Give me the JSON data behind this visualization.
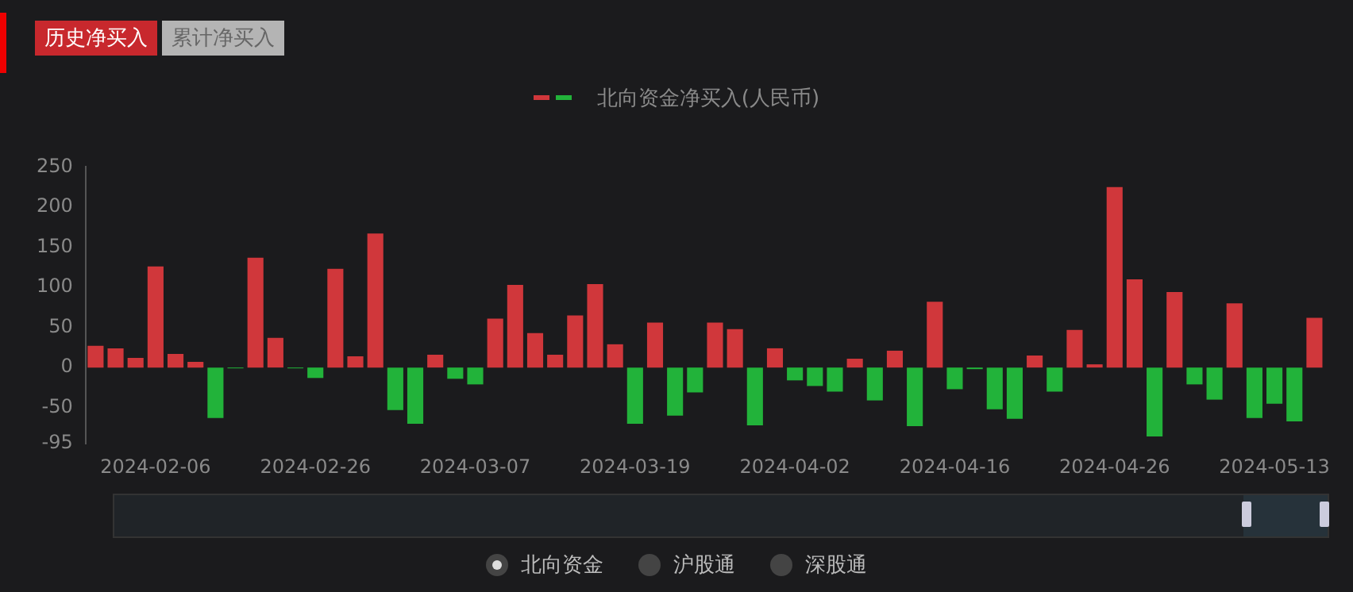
{
  "chart_data": {
    "type": "bar",
    "legend": "top",
    "annotations": [
      "历史净买入",
      "累计净买入",
      "北向资金",
      "沪股通",
      "深股通"
    ],
    "categories": [
      null,
      null,
      null,
      "2024-02-06",
      null,
      null,
      null,
      null,
      null,
      null,
      null,
      "2024-02-26",
      null,
      null,
      null,
      null,
      null,
      null,
      null,
      "2024-03-07",
      null,
      null,
      null,
      null,
      null,
      null,
      null,
      "2024-03-19",
      null,
      null,
      null,
      null,
      null,
      null,
      null,
      "2024-04-02",
      null,
      null,
      null,
      null,
      null,
      null,
      null,
      "2024-04-16",
      null,
      null,
      null,
      null,
      null,
      null,
      null,
      "2024-04-26",
      null,
      null,
      null,
      null,
      null,
      null,
      null,
      "2024-05-13",
      null,
      null
    ],
    "series": [
      {
        "name": "北向资金净买入(人民币)",
        "values": [
          27,
          24,
          12,
          126,
          17,
          7,
          -63,
          -1,
          137,
          37,
          -1,
          -13,
          123,
          14,
          167,
          -53,
          -70,
          16,
          -14,
          -21,
          61,
          103,
          43,
          16,
          65,
          104,
          29,
          -70,
          56,
          -60,
          -31,
          56,
          48,
          -72,
          24,
          -16,
          -23,
          -30,
          11,
          -41,
          21,
          -73,
          82,
          -27,
          -2,
          -52,
          -64,
          15,
          -30,
          47,
          4,
          225,
          110,
          -86,
          94,
          -21,
          -40,
          80,
          -63,
          -45,
          -67,
          62
        ],
        "colors": [
          "#d0373b",
          "#d0373b",
          "#d0373b",
          "#d0373b",
          "#d0373b",
          "#d0373b",
          "#22b33a",
          "#22b33a",
          "#d0373b",
          "#d0373b",
          "#22b33a",
          "#22b33a",
          "#d0373b",
          "#d0373b",
          "#d0373b",
          "#22b33a",
          "#22b33a",
          "#d0373b",
          "#22b33a",
          "#22b33a",
          "#d0373b",
          "#d0373b",
          "#d0373b",
          "#d0373b",
          "#d0373b",
          "#d0373b",
          "#d0373b",
          "#22b33a",
          "#d0373b",
          "#22b33a",
          "#22b33a",
          "#d0373b",
          "#d0373b",
          "#22b33a",
          "#d0373b",
          "#22b33a",
          "#22b33a",
          "#22b33a",
          "#d0373b",
          "#22b33a",
          "#d0373b",
          "#22b33a",
          "#d0373b",
          "#22b33a",
          "#22b33a",
          "#22b33a",
          "#22b33a",
          "#d0373b",
          "#22b33a",
          "#d0373b",
          "#d0373b",
          "#d0373b",
          "#d0373b",
          "#22b33a",
          "#d0373b",
          "#22b33a",
          "#22b33a",
          "#d0373b",
          "#22b33a",
          "#22b33a",
          "#22b33a",
          "#d0373b"
        ]
      }
    ],
    "ylim": [
      -95,
      250
    ],
    "yticks": [
      -95,
      -50,
      0,
      50,
      100,
      150,
      200,
      250
    ]
  }
}
